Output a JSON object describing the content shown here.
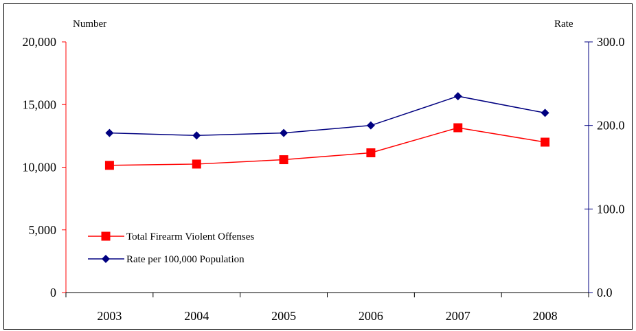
{
  "chart_data": {
    "type": "line",
    "categories": [
      "2003",
      "2004",
      "2005",
      "2006",
      "2007",
      "2008"
    ],
    "left_axis": {
      "label": "Number",
      "ylim": [
        0,
        20000
      ],
      "ticks": [
        0,
        5000,
        10000,
        15000,
        20000
      ],
      "tick_labels": [
        "0",
        "5,000",
        "10,000",
        "15,000",
        "20,000"
      ],
      "color": "#ff0000"
    },
    "right_axis": {
      "label": "Rate",
      "ylim": [
        0,
        300
      ],
      "ticks": [
        0,
        100,
        200,
        300
      ],
      "tick_labels": [
        "0.0",
        "100.0",
        "200.0",
        "300.0"
      ],
      "color": "#000080"
    },
    "series": [
      {
        "name": "Total Firearm Violent Offenses",
        "axis": "left",
        "color": "#ff0000",
        "marker": "square",
        "values": [
          10150,
          10250,
          10600,
          11150,
          13150,
          12000
        ]
      },
      {
        "name": "Rate per 100,000 Population",
        "axis": "right",
        "color": "#000080",
        "marker": "diamond",
        "values": [
          191,
          188,
          191,
          200,
          235,
          215
        ]
      }
    ],
    "legend_position": "bottom-left",
    "grid": false
  }
}
